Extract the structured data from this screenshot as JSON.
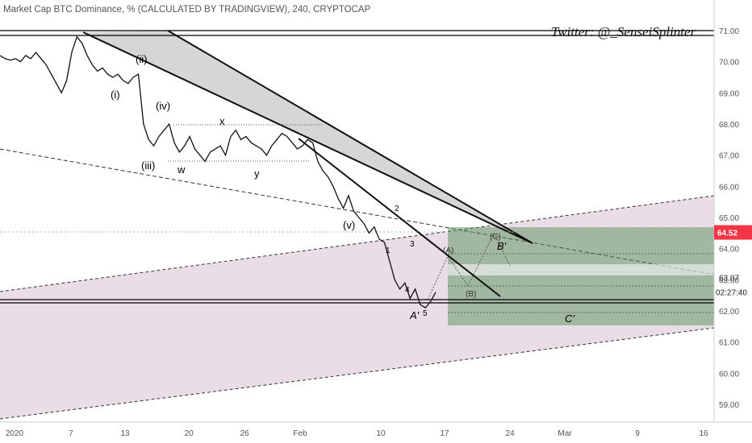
{
  "chart_data": {
    "type": "line",
    "title": "Market Cap BTC Dominance, % (CALCULATED BY TRADINGVIEW), 240, CRYPTOCAP",
    "watermark": "Twitter: @_SenseiSplinter",
    "y_ticks": [
      "71.00",
      "70.00",
      "69.00",
      "68.00",
      "67.00",
      "66.00",
      "65.00",
      "64.00",
      "63.00",
      "62.00",
      "61.00",
      "60.00",
      "59.00"
    ],
    "ylim": [
      58.3,
      71.9
    ],
    "x_ticks": [
      "2020",
      "7",
      "13",
      "20",
      "26",
      "Feb",
      "10",
      "17",
      "24",
      "Mar",
      "9",
      "16"
    ],
    "price_badge": {
      "value": "64.52",
      "color": "#f23645"
    },
    "level_labels": [
      "63.07",
      "02:27:40"
    ],
    "series": [
      {
        "values": [
          70.2,
          70.1,
          70.05,
          70.1,
          70.0,
          70.2,
          70.1,
          70.3,
          70.1,
          69.9,
          69.6,
          69.3,
          69.0,
          69.4,
          70.3,
          70.8,
          70.6,
          70.2,
          69.9,
          69.7,
          69.8,
          69.6,
          69.5,
          69.6,
          69.4,
          69.3,
          69.5,
          69.6,
          68.0,
          67.5,
          67.3,
          67.6,
          67.8,
          68.0,
          67.4,
          67.1,
          67.3,
          67.6,
          67.2,
          67.0,
          66.8,
          67.1,
          67.2,
          67.3,
          67.0,
          67.6,
          67.8,
          67.5,
          67.6,
          67.4,
          67.3,
          67.2,
          67.0,
          67.3,
          67.5,
          67.7,
          67.6,
          67.4,
          67.2,
          67.3,
          67.5,
          67.4,
          66.8,
          66.5,
          66.3,
          66.0,
          65.6,
          65.3,
          65.7,
          65.2,
          65.0,
          64.8,
          64.5,
          64.7,
          64.3,
          64.2,
          63.6,
          63.0,
          62.7,
          62.9,
          62.4,
          62.7,
          62.2,
          62.1,
          62.3,
          62.6
        ]
      }
    ],
    "annotations": [
      {
        "text": "(i)",
        "color": "#000"
      },
      {
        "text": "(ii)",
        "color": "#000"
      },
      {
        "text": "(iii)",
        "color": "#000"
      },
      {
        "text": "(iv)",
        "color": "#000"
      },
      {
        "text": "(v)",
        "color": "#000"
      },
      {
        "text": "w",
        "color": "#000"
      },
      {
        "text": "x",
        "color": "#000"
      },
      {
        "text": "y",
        "color": "#000"
      },
      {
        "text": "1",
        "color": "#000"
      },
      {
        "text": "2",
        "color": "#000"
      },
      {
        "text": "3",
        "color": "#000"
      },
      {
        "text": "4",
        "color": "#000"
      },
      {
        "text": "5",
        "color": "#000"
      },
      {
        "text": "A'",
        "color": "#000"
      },
      {
        "text": "B'",
        "color": "#000"
      },
      {
        "text": "C'",
        "color": "#000"
      },
      {
        "text": "(A)",
        "color": "#333"
      },
      {
        "text": "(B)",
        "color": "#333"
      },
      {
        "text": "(C)",
        "color": "#333"
      }
    ],
    "colors": {
      "channel_fill": "#e8d7e2",
      "target_box": "#4a8a4a",
      "wedge_fill": "#c8c8c8"
    },
    "grid": false
  }
}
